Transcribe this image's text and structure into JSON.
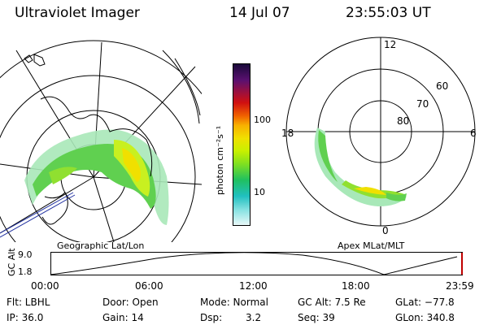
{
  "header": {
    "instrument": "Ultraviolet Imager",
    "date": "14 Jul 07",
    "time": "23:55:03 UT"
  },
  "colorbar": {
    "unit_label": "photon cm⁻²s⁻¹",
    "ticks": [
      "100",
      "10"
    ],
    "scale": "log",
    "colors": [
      "#1a0a3a",
      "#5a1070",
      "#a0103a",
      "#d01010",
      "#f06000",
      "#f8b000",
      "#f0e000",
      "#c8f000",
      "#80e020",
      "#20c060",
      "#20c0c0",
      "#80e0e0",
      "#e8f8f8"
    ]
  },
  "left_map": {
    "caption": "Geographic Lat/Lon"
  },
  "right_map": {
    "caption": "Apex MLat/MLT",
    "mlt_labels": {
      "top": "12",
      "bottom": "0",
      "left": "18",
      "right": "6"
    },
    "lat_labels": [
      "60",
      "70",
      "80"
    ]
  },
  "orbit_plot": {
    "ylabel": "GC Alt",
    "yticks": [
      "9.0",
      "1.8"
    ],
    "xticks": [
      "00:00",
      "06:00",
      "12:00",
      "18:00",
      "23:59"
    ]
  },
  "footer": {
    "flt": "Flt: LBHL",
    "ip": "IP: 36.0",
    "door": "Door: Open",
    "gain": "Gain: 14",
    "mode": "Mode: Normal",
    "dsp_label": "Dsp:",
    "dsp_value": "3.2",
    "gcalt": "GC Alt: 7.5 Re",
    "seq": "Seq: 39",
    "glat": "GLat: −77.8",
    "glon": "GLon: 340.8"
  }
}
